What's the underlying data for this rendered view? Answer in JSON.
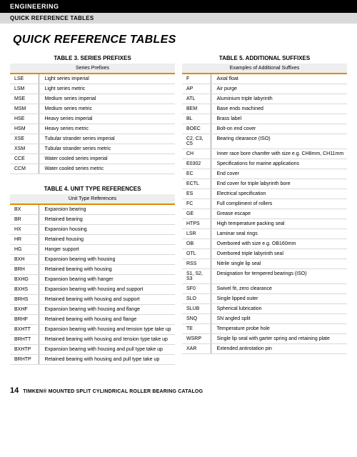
{
  "header": {
    "section": "ENGINEERING",
    "subsection": "QUICK REFERENCE TABLES"
  },
  "mainTitle": "QUICK REFERENCE TABLES",
  "table3": {
    "title": "TABLE 3. SERIES PREFIXES",
    "subhead": "Series Prefixes",
    "rows": [
      {
        "code": "LSE",
        "desc": "Light series imperial"
      },
      {
        "code": "LSM",
        "desc": "Light series metric"
      },
      {
        "code": "MSE",
        "desc": "Medium series imperial"
      },
      {
        "code": "MSM",
        "desc": "Medium series metric"
      },
      {
        "code": "HSE",
        "desc": "Heavy series imperial"
      },
      {
        "code": "HSM",
        "desc": "Heavy series metric"
      },
      {
        "code": "XSE",
        "desc": "Tubular strander series imperial"
      },
      {
        "code": "XSM",
        "desc": "Tubular strander series metric"
      },
      {
        "code": "CCE",
        "desc": "Water cooled series imperial"
      },
      {
        "code": "CCM",
        "desc": "Water cooled series metric"
      }
    ]
  },
  "table4": {
    "title": "TABLE 4. UNIT TYPE REFERENCES",
    "subhead": "Unit Type References",
    "rows": [
      {
        "code": "BX",
        "desc": "Expansion bearing"
      },
      {
        "code": "BR",
        "desc": "Retained bearing"
      },
      {
        "code": "HX",
        "desc": "Expansion housing"
      },
      {
        "code": "HR",
        "desc": "Retained housing"
      },
      {
        "code": "HG",
        "desc": "Hanger support"
      },
      {
        "code": "BXH",
        "desc": "Expansion bearing with housing"
      },
      {
        "code": "BRH",
        "desc": "Retained bearing with housing"
      },
      {
        "code": "BXHG",
        "desc": "Expansion bearing with hanger"
      },
      {
        "code": "BXHS",
        "desc": "Expansion bearing with housing and support"
      },
      {
        "code": "BRHS",
        "desc": "Retained bearing with housing and support"
      },
      {
        "code": "BXHF",
        "desc": "Expansion bearing with housing and flange"
      },
      {
        "code": "BRHF",
        "desc": "Retained bearing with housing and flange"
      },
      {
        "code": "BXHTT",
        "desc": "Expansion bearing with housing and tension type take up"
      },
      {
        "code": "BRHTT",
        "desc": "Retained bearing with housing and tension type take up"
      },
      {
        "code": "BXHTP",
        "desc": "Expansion bearing with housing and pull type take up"
      },
      {
        "code": "BRHTP",
        "desc": "Retained bearing with housing and pull type take up"
      }
    ]
  },
  "table5": {
    "title": "TABLE 5. ADDITIONAL SUFFIXES",
    "subhead": "Examples of Additional Suffixes",
    "rows": [
      {
        "code": "F",
        "desc": "Axial float"
      },
      {
        "code": "AP",
        "desc": "Air purge"
      },
      {
        "code": "ATL",
        "desc": "Aluminium triple labyrinth"
      },
      {
        "code": "BEM",
        "desc": "Base ends machined"
      },
      {
        "code": "BL",
        "desc": "Brass label"
      },
      {
        "code": "BOEC",
        "desc": "Bolt-on end cover"
      },
      {
        "code": "C2, C3, C5",
        "desc": "Bearing clearance (ISO)"
      },
      {
        "code": "CH",
        "desc": "Inner race bore chamfer with size e.g. CH8mm, CH11mm"
      },
      {
        "code": "E0302",
        "desc": "Specifications for marine applications"
      },
      {
        "code": "EC",
        "desc": "End cover"
      },
      {
        "code": "ECTL",
        "desc": "End cover for triple labyrinth bore"
      },
      {
        "code": "ES",
        "desc": "Electrical specification"
      },
      {
        "code": "FC",
        "desc": "Full compliment of rollers"
      },
      {
        "code": "GE",
        "desc": "Grease escape"
      },
      {
        "code": "HTPS",
        "desc": "High temperature packing seal"
      },
      {
        "code": "LSR",
        "desc": "Laminar seal rings"
      },
      {
        "code": "OB",
        "desc": "Overbored with size e.g. OB160mm"
      },
      {
        "code": "OTL",
        "desc": "Overbored triple labyrinth seal"
      },
      {
        "code": "RSS",
        "desc": "Nitrile single lip seal"
      },
      {
        "code": "S1, S2, S3",
        "desc": "Designation for tempered bearings (ISO)"
      },
      {
        "code": "SF0",
        "desc": "Swivel fit, zero clearance"
      },
      {
        "code": "SLO",
        "desc": "Single lipped outer"
      },
      {
        "code": "SLUB",
        "desc": "Spherical lubrication"
      },
      {
        "code": "SNQ",
        "desc": "SN angled split"
      },
      {
        "code": "TE",
        "desc": "Temperature probe hole"
      },
      {
        "code": "WSRP",
        "desc": "Single lip seal with garter spring and retaining plate"
      },
      {
        "code": "XAR",
        "desc": "Extended antirotation pin"
      }
    ]
  },
  "footer": {
    "pageNum": "14",
    "text": "TIMKEN® MOUNTED SPLIT CYLINDRICAL ROLLER BEARING CATALOG"
  },
  "colors": {
    "accent": "#e08a00",
    "headerBlack": "#000000",
    "headerGray": "#d9d9d9",
    "rowBorder": "#d9d9d9",
    "subheadBg": "#eeeeee"
  }
}
